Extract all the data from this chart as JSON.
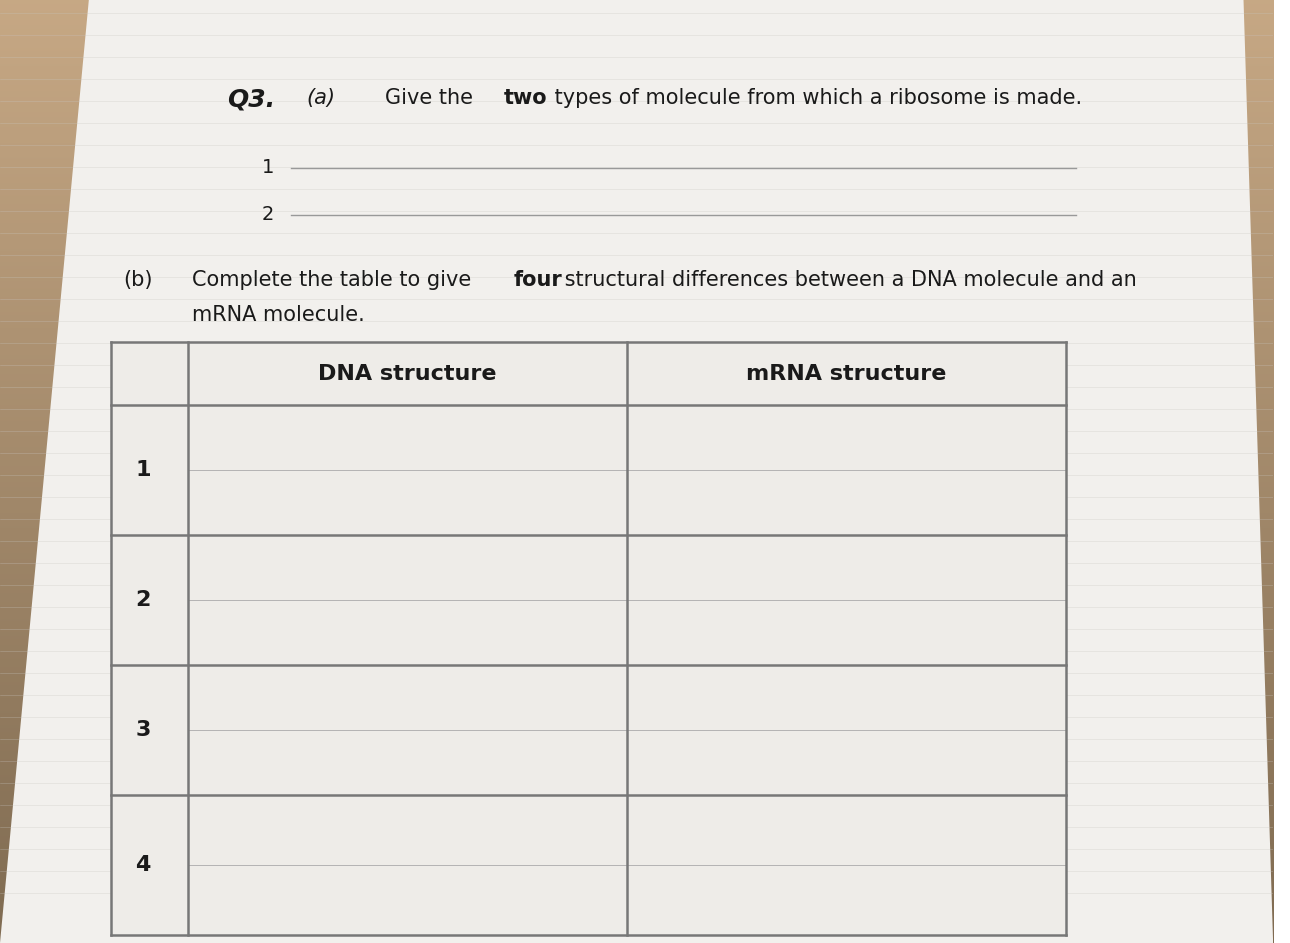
{
  "bg_top_color": "#8a7060",
  "bg_bottom_color": "#c8bfb0",
  "page_color": "#f0efed",
  "ruled_line_color": "#c8c5c0",
  "q3_label": "Q3.",
  "qa_label": "(a)",
  "qa_text_normal": "Give the ",
  "qa_text_bold": "two",
  "qa_text_normal2": " types of molecule from which a ribosome is made.",
  "line1_label": "1",
  "line2_label": "2",
  "qb_label": "(b)",
  "qb_text_normal1": "Complete the table to give ",
  "qb_text_bold": "four",
  "qb_text_normal2": " structural differences between a DNA molecule and an",
  "qb_text_normal3": "mRNA molecule.",
  "table_header_col1": "DNA structure",
  "table_header_col2": "mRNA structure",
  "row_labels": [
    "1",
    "2",
    "3",
    "4"
  ],
  "table_line_color": "#777777",
  "text_color": "#1a1a1a"
}
